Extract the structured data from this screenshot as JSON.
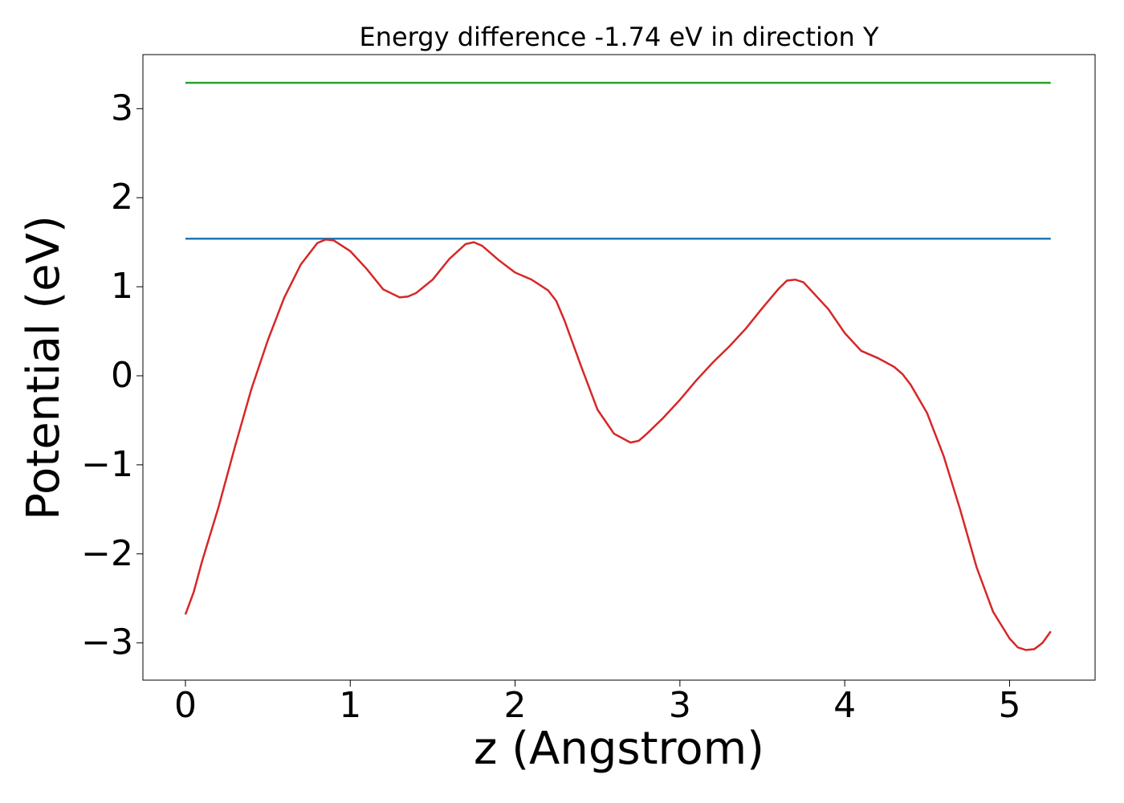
{
  "chart_data": {
    "type": "line",
    "title": "Energy difference -1.74 eV in direction Y",
    "xlabel": "z (Angstrom)",
    "ylabel": "Potential (eV)",
    "xlim": [
      -0.258,
      5.519
    ],
    "ylim": [
      -3.418,
      3.607
    ],
    "xticks": [
      0,
      1,
      2,
      3,
      4,
      5
    ],
    "yticks": [
      {
        "value": -3,
        "label": "−3"
      },
      {
        "value": -2,
        "label": "−2"
      },
      {
        "value": -1,
        "label": "−1"
      },
      0,
      1,
      2,
      3
    ],
    "series": [
      {
        "color": "#2ca02c",
        "x": [
          0,
          5.25
        ],
        "values": [
          3.29,
          3.29
        ]
      },
      {
        "color": "#1f77b4",
        "x": [
          0,
          5.25
        ],
        "values": [
          1.54,
          1.54
        ]
      },
      {
        "color": "#d62728",
        "x": [
          0,
          0.05,
          0.1,
          0.2,
          0.3,
          0.4,
          0.5,
          0.6,
          0.7,
          0.8,
          0.85,
          0.9,
          1.0,
          1.1,
          1.2,
          1.3,
          1.35,
          1.4,
          1.5,
          1.6,
          1.7,
          1.75,
          1.8,
          1.9,
          2.0,
          2.1,
          2.2,
          2.25,
          2.3,
          2.4,
          2.5,
          2.6,
          2.7,
          2.75,
          2.8,
          2.9,
          3.0,
          3.1,
          3.2,
          3.3,
          3.4,
          3.5,
          3.6,
          3.65,
          3.7,
          3.75,
          3.8,
          3.9,
          4.0,
          4.1,
          4.2,
          4.3,
          4.35,
          4.4,
          4.5,
          4.6,
          4.7,
          4.8,
          4.9,
          5.0,
          5.05,
          5.1,
          5.15,
          5.2,
          5.25
        ],
        "values": [
          -2.68,
          -2.43,
          -2.09,
          -1.48,
          -0.8,
          -0.15,
          0.4,
          0.88,
          1.25,
          1.49,
          1.53,
          1.52,
          1.4,
          1.2,
          0.97,
          0.88,
          0.89,
          0.93,
          1.08,
          1.31,
          1.48,
          1.5,
          1.46,
          1.3,
          1.16,
          1.08,
          0.96,
          0.84,
          0.62,
          0.11,
          -0.38,
          -0.65,
          -0.75,
          -0.73,
          -0.65,
          -0.47,
          -0.27,
          -0.05,
          0.15,
          0.33,
          0.53,
          0.76,
          0.98,
          1.07,
          1.08,
          1.05,
          0.95,
          0.75,
          0.48,
          0.28,
          0.2,
          0.1,
          0.02,
          -0.1,
          -0.42,
          -0.9,
          -1.5,
          -2.15,
          -2.65,
          -2.95,
          -3.05,
          -3.08,
          -3.07,
          -3.0,
          -2.87
        ]
      }
    ]
  }
}
